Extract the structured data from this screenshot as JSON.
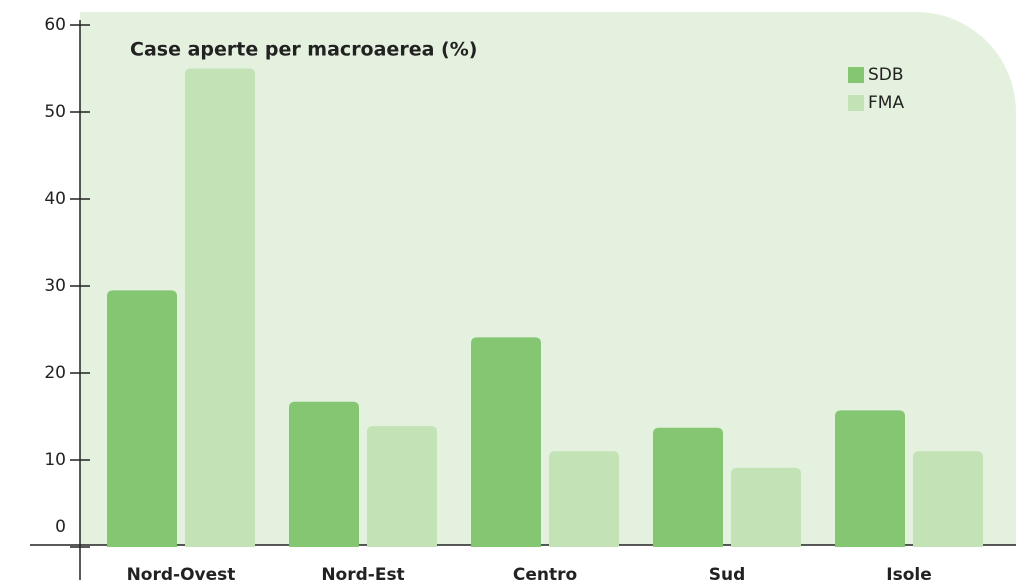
{
  "chart_data": {
    "type": "bar",
    "title": "Case aperte per macroaerea (%)",
    "categories": [
      "Nord-Ovest",
      "Nord-Est",
      "Centro",
      "Sud",
      "Isole"
    ],
    "series": [
      {
        "name": "SDB",
        "color": "#84c672",
        "values": [
          29.5,
          16.7,
          24.1,
          13.7,
          15.7
        ]
      },
      {
        "name": "FMA",
        "color": "#c3e2b5",
        "values": [
          55,
          13.9,
          11,
          9.1,
          11
        ]
      }
    ],
    "ylim": [
      0,
      60
    ],
    "yticks": [
      0,
      10,
      20,
      30,
      40,
      50,
      60
    ],
    "legend": "top-right"
  }
}
